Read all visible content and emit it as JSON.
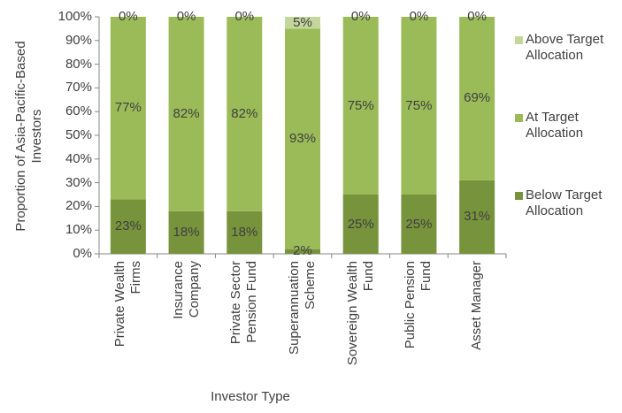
{
  "chart_data": {
    "type": "stacked_bar",
    "x_label": "Investor Type",
    "y_label": "Proportion of Asia-Pacific-Based Investors",
    "categories": [
      "Private Wealth Firms",
      "Insurance Company",
      "Private Sector Pension Fund",
      "Superannuation Scheme",
      "Sovereign Wealth Fund",
      "Public Pension Fund",
      "Asset Manager"
    ],
    "series": [
      {
        "name": "Below Target Allocation",
        "color": "#77933c",
        "values": [
          23,
          18,
          18,
          2,
          25,
          25,
          31
        ],
        "value_labels": [
          "23%",
          "18%",
          "18%",
          "2%",
          "25%",
          "25%",
          "31%"
        ]
      },
      {
        "name": "At Target Allocation",
        "color": "#9bbb59",
        "values": [
          77,
          82,
          82,
          93,
          75,
          75,
          69
        ],
        "value_labels": [
          "77%",
          "82%",
          "82%",
          "93%",
          "75%",
          "75%",
          "69%"
        ]
      },
      {
        "name": "Above Target Allocation",
        "color": "#c3d69b",
        "values": [
          0,
          0,
          0,
          5,
          0,
          0,
          0
        ],
        "value_labels": [
          "0%",
          "0%",
          "0%",
          "5%",
          "0%",
          "0%",
          "0%"
        ]
      }
    ],
    "ylim": [
      0,
      100
    ],
    "yticks": [
      {
        "value": 0,
        "label": "0%"
      },
      {
        "value": 10,
        "label": "10%"
      },
      {
        "value": 20,
        "label": "20%"
      },
      {
        "value": 30,
        "label": "30%"
      },
      {
        "value": 40,
        "label": "40%"
      },
      {
        "value": 50,
        "label": "50%"
      },
      {
        "value": 60,
        "label": "60%"
      },
      {
        "value": 70,
        "label": "70%"
      },
      {
        "value": 80,
        "label": "80%"
      },
      {
        "value": 90,
        "label": "90%"
      },
      {
        "value": 100,
        "label": "100%"
      }
    ],
    "legend": "right"
  }
}
